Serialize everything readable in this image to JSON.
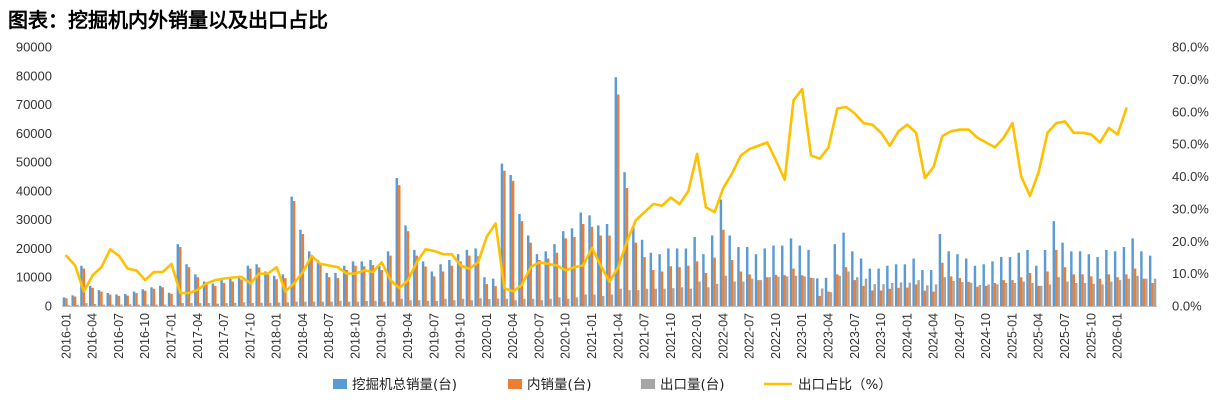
{
  "title": "图表：挖掘机内外销量以及出口占比",
  "colors": {
    "total": "#5B9BD5",
    "domestic": "#ED7D31",
    "export": "#A5A5A5",
    "ratio": "#FFC000",
    "grid": "#D9D9D9",
    "text": "#333333"
  },
  "chart_data": {
    "type": "bar",
    "title": "图表：挖掘机内外销量以及出口占比",
    "ylim_left": [
      0,
      90000
    ],
    "ylim_right": [
      0,
      80
    ],
    "yticks_left": [
      "0",
      "10000",
      "20000",
      "30000",
      "40000",
      "50000",
      "60000",
      "70000",
      "80000",
      "90000"
    ],
    "yticks_right": [
      "0.0%",
      "10.0%",
      "20.0%",
      "30.0%",
      "40.0%",
      "50.0%",
      "60.0%",
      "70.0%",
      "80.0%"
    ],
    "x_tick_labels": [
      "2016-01",
      "2016-04",
      "2016-07",
      "2016-10",
      "2017-01",
      "2017-04",
      "2017-07",
      "2017-10",
      "2018-01",
      "2018-04",
      "2018-07",
      "2018-10",
      "2019-01",
      "2019-04",
      "2019-07",
      "2019-10",
      "2020-01",
      "2020-04",
      "2020-07",
      "2020-10",
      "2021-01",
      "2021-04",
      "2021-07",
      "2021-10",
      "2022-01",
      "2022-04",
      "2022-07",
      "2022-10",
      "2023-01",
      "2023-04",
      "2023-07",
      "2023-10",
      "2024-01",
      "2024-04",
      "2024-07",
      "2024-10",
      "2025-01",
      "2025-04",
      "2025-07",
      "2025-10",
      "2026-01"
    ],
    "legend": [
      "挖掘机总销量(台)",
      "内销量(台)",
      "出口量(台)",
      "出口占比（%）"
    ],
    "series": [
      {
        "name": "挖掘机总销量(台)",
        "axis": "left",
        "values": [
          3000,
          3700,
          14000,
          7000,
          5500,
          4500,
          4000,
          4200,
          5000,
          5800,
          6500,
          7000,
          4600,
          21500,
          14500,
          11000,
          8500,
          7800,
          9000,
          9600,
          10500,
          14000,
          14500,
          12000,
          10500,
          11000,
          38000,
          26500,
          19000,
          16000,
          11500,
          11500,
          14000,
          15500,
          15500,
          16000,
          14000,
          19000,
          44500,
          28000,
          19500,
          15500,
          12000,
          14500,
          16000,
          18000,
          19500,
          20000,
          10000,
          9500,
          49500,
          45500,
          32000,
          24500,
          18000,
          19000,
          21500,
          26000,
          27000,
          32500,
          31500,
          28000,
          28500,
          79500,
          46500,
          27500,
          23000,
          18500,
          18000,
          20000,
          20000,
          20000,
          24000,
          18000,
          24500,
          37000,
          24500,
          20500,
          20500,
          18000,
          20000,
          21000,
          21000,
          23500,
          21000,
          19500,
          9600,
          9800,
          21500,
          25500,
          19000,
          16500,
          13000,
          13000,
          14000,
          14500,
          14500,
          16500,
          12500,
          12500,
          25000,
          19000,
          18000,
          16500,
          14000,
          14500,
          15500,
          17000,
          17000,
          18500,
          19500,
          14000,
          19500,
          29500,
          22000,
          19000,
          19000,
          18000,
          17000,
          19500,
          19000,
          20500,
          23500,
          19000,
          17500
        ],
        "rendered": "bars"
      },
      {
        "name": "内销量(台)",
        "axis": "left",
        "values": [
          2700,
          3300,
          13000,
          6300,
          5000,
          4000,
          3500,
          3600,
          4500,
          5300,
          6000,
          6500,
          4200,
          20500,
          13500,
          10000,
          7500,
          7000,
          8000,
          8500,
          9200,
          13000,
          13400,
          10900,
          9300,
          9700,
          36500,
          25000,
          17500,
          14500,
          10000,
          9700,
          12500,
          14000,
          13800,
          14200,
          12500,
          17500,
          42000,
          26000,
          17500,
          13700,
          10300,
          12000,
          14000,
          15500,
          17500,
          17300,
          7600,
          6900,
          47000,
          43500,
          29500,
          22000,
          16000,
          16500,
          18500,
          23500,
          24000,
          28500,
          27500,
          24500,
          24500,
          73500,
          41000,
          22000,
          17000,
          12500,
          12000,
          13800,
          13500,
          14000,
          15500,
          11500,
          16800,
          26500,
          16000,
          12000,
          11000,
          9000,
          10000,
          10800,
          10700,
          13000,
          10700,
          9800,
          3500,
          5000,
          11000,
          13500,
          9000,
          7000,
          5400,
          5400,
          6000,
          6300,
          6400,
          7500,
          5300,
          5000,
          15000,
          10300,
          9700,
          8400,
          6700,
          7000,
          8000,
          9000,
          9000,
          10000,
          11500,
          7000,
          12000,
          19500,
          13500,
          11000,
          11000,
          10300,
          9500,
          11000,
          10000,
          11000,
          13000,
          9500,
          8000
        ]
      },
      {
        "name": "出口量(台)",
        "axis": "left",
        "values": [
          300,
          400,
          1000,
          700,
          500,
          500,
          500,
          600,
          500,
          500,
          500,
          500,
          400,
          1000,
          1000,
          1000,
          1000,
          800,
          1000,
          1100,
          1300,
          1000,
          1100,
          1100,
          1200,
          1300,
          1500,
          1500,
          1500,
          1500,
          1500,
          1800,
          1500,
          1500,
          1700,
          1800,
          1500,
          1500,
          2500,
          2000,
          2000,
          1800,
          1700,
          2500,
          2000,
          2500,
          2000,
          2700,
          2400,
          2600,
          2500,
          2000,
          2500,
          2500,
          2000,
          2500,
          3000,
          2500,
          3000,
          4000,
          4000,
          3500,
          4000,
          6000,
          5500,
          5500,
          6000,
          6000,
          6000,
          6200,
          6500,
          6000,
          8500,
          6500,
          7700,
          10500,
          8500,
          8500,
          9500,
          9000,
          10000,
          10200,
          10300,
          10500,
          10300,
          9700,
          6100,
          4800,
          10500,
          12000,
          10000,
          9500,
          7600,
          7600,
          8000,
          8200,
          8100,
          9000,
          7200,
          7500,
          10000,
          8700,
          8300,
          8100,
          7300,
          7500,
          7500,
          8000,
          8000,
          8500,
          8000,
          7000,
          7500,
          10000,
          8500,
          8000,
          8000,
          7700,
          7500,
          8500,
          9000,
          9500,
          10500,
          9500,
          9500
        ]
      },
      {
        "name": "出口占比（%）",
        "axis": "right",
        "values": [
          15.5,
          12.5,
          4.5,
          9.5,
          12.0,
          17.5,
          15.5,
          11.5,
          11.0,
          8.0,
          10.5,
          10.5,
          13.0,
          4.0,
          4.0,
          5.0,
          7.0,
          8.0,
          8.5,
          8.8,
          9.0,
          7.0,
          10.0,
          10.0,
          12.0,
          4.5,
          7.0,
          10.5,
          15.5,
          13.0,
          12.5,
          12.0,
          10.0,
          10.0,
          11.0,
          10.5,
          13.5,
          8.0,
          5.5,
          8.0,
          13.5,
          17.5,
          17.0,
          16.0,
          16.0,
          12.5,
          11.5,
          13.5,
          21.5,
          25.5,
          5.5,
          4.5,
          6.5,
          12.0,
          13.5,
          13.0,
          12.5,
          11.0,
          12.0,
          12.5,
          18.0,
          12.5,
          7.5,
          12.0,
          20.0,
          26.5,
          29.0,
          31.5,
          31.0,
          33.5,
          31.5,
          35.5,
          47.0,
          30.5,
          29.0,
          36.5,
          41.0,
          46.5,
          48.5,
          49.5,
          50.5,
          45.0,
          39.0,
          63.5,
          67.0,
          46.5,
          45.5,
          49.0,
          61.0,
          61.5,
          59.5,
          56.5,
          56.0,
          53.5,
          49.5,
          54.0,
          56.0,
          53.5,
          39.5,
          43.0,
          52.5,
          54.0,
          54.5,
          54.5,
          52.0,
          50.5,
          49.0,
          52.0,
          56.5,
          40.0,
          34.0,
          41.5,
          53.5,
          56.5,
          57.0,
          53.5,
          53.5,
          53.0,
          50.5,
          55.0,
          53.0,
          61.0
        ]
      }
    ]
  }
}
